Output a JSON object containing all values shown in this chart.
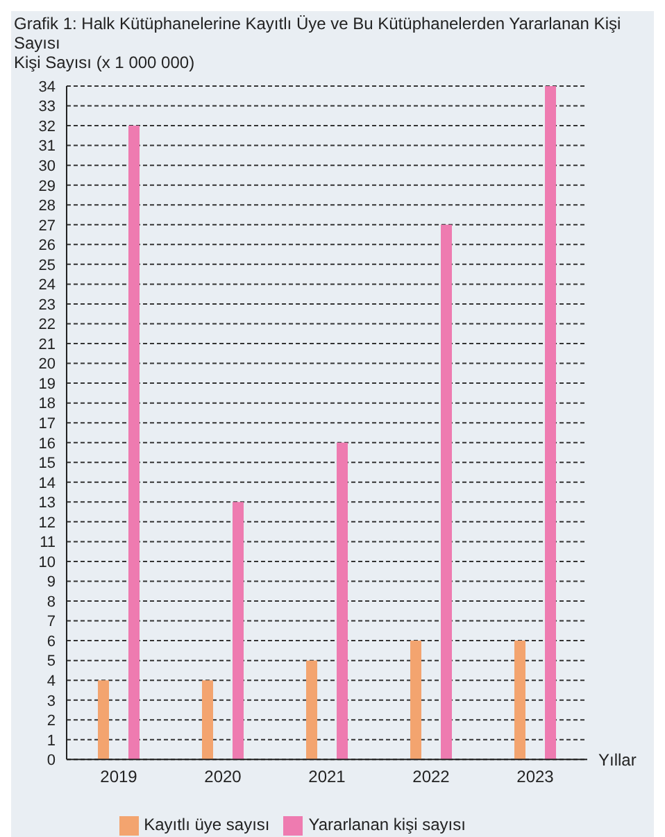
{
  "chart_data": {
    "type": "bar",
    "title": "Grafik 1: Halk Kütüphanelerine Kayıtlı Üye ve Bu Kütüphanelerden Yararlanan Kişi Sayısı",
    "ylabel": "Kişi Sayısı (x 1 000 000)",
    "xlabel": "Yıllar",
    "categories": [
      "2019",
      "2020",
      "2021",
      "2022",
      "2023"
    ],
    "series": [
      {
        "name": "Kayıtlı üye sayısı",
        "color": "#f3a46f",
        "values": [
          4,
          4,
          5,
          6,
          6
        ]
      },
      {
        "name": "Yararlanan kişi sayısı",
        "color": "#ee7bb0",
        "values": [
          32,
          13,
          16,
          27,
          34
        ]
      }
    ],
    "ylim": [
      0,
      34
    ],
    "yticks": [
      0,
      1,
      2,
      3,
      4,
      5,
      6,
      7,
      8,
      9,
      10,
      11,
      12,
      13,
      14,
      15,
      16,
      17,
      18,
      19,
      20,
      21,
      22,
      23,
      24,
      25,
      26,
      27,
      28,
      29,
      30,
      31,
      32,
      33,
      34
    ],
    "grid": "y",
    "legend": "bottom"
  }
}
